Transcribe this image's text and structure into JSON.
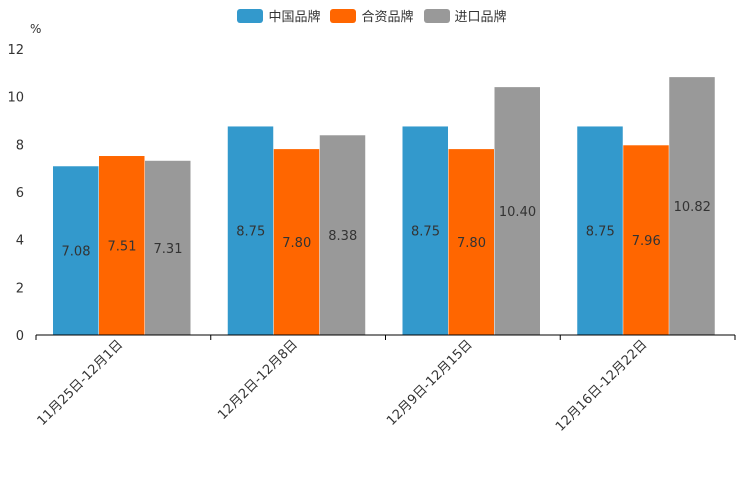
{
  "chart_data": {
    "type": "bar",
    "unit_label": "%",
    "categories": [
      "11月25日-12月1日",
      "12月2日-12月8日",
      "12月9日-12月15日",
      "12月16日-12月22日"
    ],
    "series": [
      {
        "name": "中国品牌",
        "color": "#3399cc",
        "values": [
          7.08,
          8.75,
          8.75,
          8.75
        ],
        "labels": [
          "7.08",
          "8.75",
          "8.75",
          "8.75"
        ]
      },
      {
        "name": "合资品牌",
        "color": "#ff6600",
        "values": [
          7.51,
          7.8,
          7.8,
          7.96
        ],
        "labels": [
          "7.51",
          "7.80",
          "7.80",
          "7.96"
        ]
      },
      {
        "name": "进口品牌",
        "color": "#999999",
        "values": [
          7.31,
          8.38,
          10.4,
          10.82
        ],
        "labels": [
          "7.31",
          "8.38",
          "10.40",
          "10.82"
        ]
      }
    ],
    "ylim": [
      0,
      12
    ],
    "yticks": [
      "0",
      "2",
      "4",
      "6",
      "8",
      "10",
      "12"
    ],
    "legend_position": "top"
  }
}
